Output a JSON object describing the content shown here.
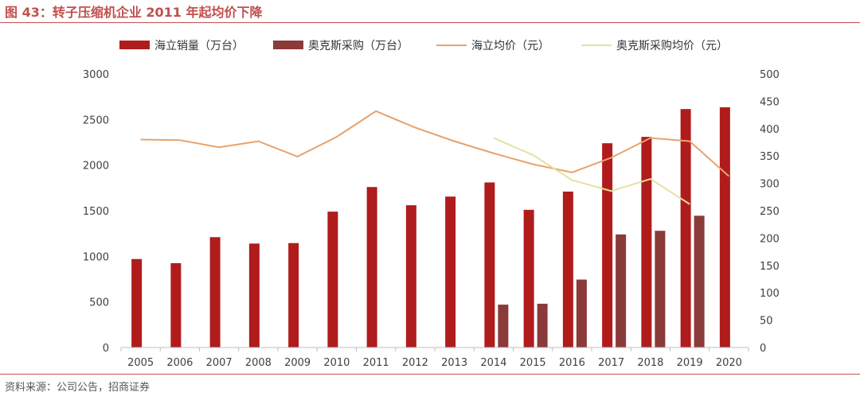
{
  "figure": {
    "title": "图 43：转子压缩机企业 2011 年起均价下降",
    "source": "资料来源：公司公告，招商证券"
  },
  "chart_data": {
    "type": "bar",
    "categories": [
      "2005",
      "2006",
      "2007",
      "2008",
      "2009",
      "2010",
      "2011",
      "2012",
      "2013",
      "2014",
      "2015",
      "2016",
      "2017",
      "2018",
      "2019",
      "2020"
    ],
    "left_axis": {
      "ylim": [
        0,
        3000
      ],
      "ticks": [
        0,
        500,
        1000,
        1500,
        2000,
        2500,
        3000
      ]
    },
    "right_axis": {
      "ylim": [
        0,
        500
      ],
      "ticks": [
        0,
        50,
        100,
        150,
        200,
        250,
        300,
        350,
        400,
        450,
        500
      ]
    },
    "series": [
      {
        "name": "海立销量（万台）",
        "type": "bar",
        "axis": "left",
        "color": "#b01c1c",
        "values": [
          970,
          925,
          1210,
          1140,
          1145,
          1490,
          1760,
          1560,
          1655,
          1810,
          1510,
          1710,
          2240,
          2310,
          2615,
          2635
        ]
      },
      {
        "name": "奥克斯采购（万台）",
        "type": "bar",
        "axis": "left",
        "color": "#8b3a3a",
        "values": [
          null,
          null,
          null,
          null,
          null,
          null,
          null,
          null,
          null,
          470,
          480,
          745,
          1240,
          1280,
          1445,
          null
        ]
      },
      {
        "name": "海立均价（元）",
        "type": "line",
        "axis": "right",
        "color": "#e8a26c",
        "values": [
          380,
          379,
          366,
          377,
          349,
          385,
          432,
          402,
          377,
          355,
          335,
          320,
          347,
          383,
          377,
          313
        ]
      },
      {
        "name": "奥克斯采购均价（元）",
        "type": "line",
        "axis": "right",
        "color": "#e6e0a0",
        "values": [
          null,
          null,
          null,
          null,
          null,
          null,
          null,
          null,
          null,
          383,
          352,
          306,
          286,
          308,
          262,
          null
        ]
      }
    ],
    "legend_position": "top",
    "grid": false
  },
  "colors": {
    "title": "#c0504d",
    "rule": "#c0504d",
    "axis": "#bfbfbf"
  }
}
